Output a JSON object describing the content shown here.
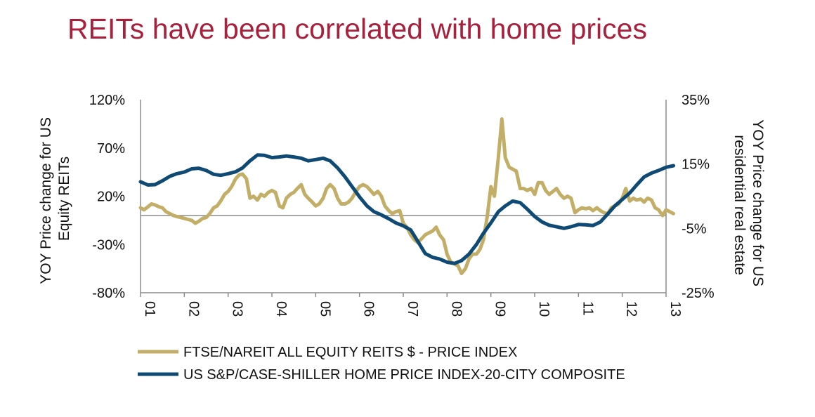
{
  "slide": {
    "title": "REITs have been correlated with home prices"
  },
  "colors": {
    "title": "#A8203C",
    "reits": "#C2AE66",
    "homes": "#0E4A74",
    "axis": "#8C8C8C"
  },
  "chart_data": {
    "type": "line",
    "title": "",
    "xlabel": "",
    "x_ticks": [
      "01",
      "02",
      "03",
      "04",
      "05",
      "06",
      "07",
      "08",
      "09",
      "10",
      "11",
      "12",
      "13"
    ],
    "y_left": {
      "label_lines": [
        "YOY Price change for US",
        "Equity REITs"
      ],
      "ticks": [
        "120%",
        "70%",
        "20%",
        "-30%",
        "-80%"
      ],
      "range": [
        -80,
        120
      ]
    },
    "y_right": {
      "label_lines": [
        "YOY Price change for US",
        "residential real estate"
      ],
      "ticks": [
        "35%",
        "15%",
        "-5%",
        "-25%"
      ],
      "range": [
        -25,
        35
      ]
    },
    "legend_position": "bottom",
    "series": [
      {
        "name": "FTSE/NAREIT ALL EQUITY REITS $ - PRICE INDEX",
        "axis": "left",
        "color": "#C2AE66",
        "points": [
          [
            2001.0,
            8
          ],
          [
            2001.08,
            6
          ],
          [
            2001.17,
            9
          ],
          [
            2001.25,
            12
          ],
          [
            2001.33,
            11
          ],
          [
            2001.42,
            9
          ],
          [
            2001.5,
            8
          ],
          [
            2001.58,
            4
          ],
          [
            2001.67,
            2
          ],
          [
            2001.75,
            0
          ],
          [
            2001.83,
            -1
          ],
          [
            2001.92,
            -2
          ],
          [
            2002.0,
            -3
          ],
          [
            2002.08,
            -4
          ],
          [
            2002.17,
            -5
          ],
          [
            2002.25,
            -8
          ],
          [
            2002.33,
            -6
          ],
          [
            2002.42,
            -3
          ],
          [
            2002.5,
            -2
          ],
          [
            2002.58,
            2
          ],
          [
            2002.67,
            8
          ],
          [
            2002.75,
            10
          ],
          [
            2002.83,
            15
          ],
          [
            2002.92,
            22
          ],
          [
            2003.0,
            25
          ],
          [
            2003.08,
            30
          ],
          [
            2003.17,
            38
          ],
          [
            2003.25,
            42
          ],
          [
            2003.33,
            43
          ],
          [
            2003.42,
            38
          ],
          [
            2003.5,
            18
          ],
          [
            2003.58,
            20
          ],
          [
            2003.67,
            16
          ],
          [
            2003.75,
            22
          ],
          [
            2003.83,
            20
          ],
          [
            2003.92,
            24
          ],
          [
            2004.0,
            26
          ],
          [
            2004.08,
            24
          ],
          [
            2004.17,
            10
          ],
          [
            2004.25,
            8
          ],
          [
            2004.33,
            18
          ],
          [
            2004.42,
            22
          ],
          [
            2004.5,
            24
          ],
          [
            2004.58,
            28
          ],
          [
            2004.67,
            32
          ],
          [
            2004.75,
            22
          ],
          [
            2004.83,
            18
          ],
          [
            2004.92,
            14
          ],
          [
            2005.0,
            10
          ],
          [
            2005.08,
            12
          ],
          [
            2005.17,
            18
          ],
          [
            2005.25,
            28
          ],
          [
            2005.33,
            32
          ],
          [
            2005.42,
            28
          ],
          [
            2005.5,
            18
          ],
          [
            2005.58,
            12
          ],
          [
            2005.67,
            12
          ],
          [
            2005.75,
            14
          ],
          [
            2005.83,
            18
          ],
          [
            2005.92,
            25
          ],
          [
            2006.0,
            30
          ],
          [
            2006.08,
            32
          ],
          [
            2006.17,
            30
          ],
          [
            2006.25,
            26
          ],
          [
            2006.33,
            22
          ],
          [
            2006.42,
            25
          ],
          [
            2006.5,
            20
          ],
          [
            2006.58,
            10
          ],
          [
            2006.67,
            5
          ],
          [
            2006.75,
            2
          ],
          [
            2006.83,
            4
          ],
          [
            2006.92,
            5
          ],
          [
            2007.0,
            -8
          ],
          [
            2007.08,
            -12
          ],
          [
            2007.17,
            -20
          ],
          [
            2007.25,
            -25
          ],
          [
            2007.33,
            -28
          ],
          [
            2007.42,
            -24
          ],
          [
            2007.5,
            -20
          ],
          [
            2007.58,
            -18
          ],
          [
            2007.67,
            -16
          ],
          [
            2007.75,
            -12
          ],
          [
            2007.83,
            -20
          ],
          [
            2007.92,
            -25
          ],
          [
            2008.0,
            -40
          ],
          [
            2008.08,
            -48
          ],
          [
            2008.17,
            -50
          ],
          [
            2008.25,
            -52
          ],
          [
            2008.33,
            -60
          ],
          [
            2008.42,
            -55
          ],
          [
            2008.5,
            -45
          ],
          [
            2008.58,
            -40
          ],
          [
            2008.67,
            -40
          ],
          [
            2008.75,
            -35
          ],
          [
            2008.83,
            -25
          ],
          [
            2008.92,
            0
          ],
          [
            2009.0,
            30
          ],
          [
            2009.08,
            20
          ],
          [
            2009.17,
            60
          ],
          [
            2009.25,
            100
          ],
          [
            2009.33,
            60
          ],
          [
            2009.42,
            50
          ],
          [
            2009.5,
            48
          ],
          [
            2009.58,
            46
          ],
          [
            2009.67,
            28
          ],
          [
            2009.75,
            28
          ],
          [
            2009.83,
            26
          ],
          [
            2009.92,
            28
          ],
          [
            2010.0,
            22
          ],
          [
            2010.08,
            34
          ],
          [
            2010.17,
            34
          ],
          [
            2010.25,
            26
          ],
          [
            2010.33,
            22
          ],
          [
            2010.42,
            25
          ],
          [
            2010.5,
            28
          ],
          [
            2010.58,
            22
          ],
          [
            2010.67,
            18
          ],
          [
            2010.75,
            20
          ],
          [
            2010.83,
            18
          ],
          [
            2010.92,
            3
          ],
          [
            2011.0,
            6
          ],
          [
            2011.08,
            8
          ],
          [
            2011.17,
            7
          ],
          [
            2011.25,
            8
          ],
          [
            2011.33,
            5
          ],
          [
            2011.42,
            8
          ],
          [
            2011.5,
            5
          ],
          [
            2011.58,
            3
          ],
          [
            2011.67,
            2
          ],
          [
            2011.75,
            8
          ],
          [
            2011.83,
            10
          ],
          [
            2011.92,
            12
          ],
          [
            2012.0,
            18
          ],
          [
            2012.08,
            28
          ],
          [
            2012.17,
            15
          ],
          [
            2012.25,
            18
          ],
          [
            2012.33,
            16
          ],
          [
            2012.42,
            17
          ],
          [
            2012.5,
            14
          ],
          [
            2012.58,
            18
          ],
          [
            2012.67,
            16
          ],
          [
            2012.75,
            8
          ],
          [
            2012.83,
            6
          ],
          [
            2012.92,
            0
          ],
          [
            2013.0,
            6
          ],
          [
            2013.08,
            4
          ],
          [
            2013.17,
            2
          ]
        ]
      },
      {
        "name": "US S&P/CASE-SHILLER HOME PRICE INDEX-20-CITY COMPOSITE",
        "axis": "right",
        "color": "#0E4A74",
        "points": [
          [
            2001.0,
            9.5
          ],
          [
            2001.17,
            8.5
          ],
          [
            2001.33,
            8.6
          ],
          [
            2001.5,
            9.8
          ],
          [
            2001.67,
            11.2
          ],
          [
            2001.83,
            12.0
          ],
          [
            2002.0,
            12.5
          ],
          [
            2002.17,
            13.5
          ],
          [
            2002.33,
            13.7
          ],
          [
            2002.5,
            13.0
          ],
          [
            2002.67,
            11.8
          ],
          [
            2002.83,
            11.5
          ],
          [
            2003.0,
            12.0
          ],
          [
            2003.17,
            12.6
          ],
          [
            2003.33,
            13.8
          ],
          [
            2003.5,
            16.0
          ],
          [
            2003.67,
            17.8
          ],
          [
            2003.83,
            17.7
          ],
          [
            2004.0,
            17.0
          ],
          [
            2004.17,
            17.2
          ],
          [
            2004.33,
            17.5
          ],
          [
            2004.5,
            17.2
          ],
          [
            2004.67,
            16.8
          ],
          [
            2004.83,
            16.0
          ],
          [
            2005.0,
            16.4
          ],
          [
            2005.17,
            16.8
          ],
          [
            2005.33,
            16.0
          ],
          [
            2005.5,
            13.8
          ],
          [
            2005.67,
            11.0
          ],
          [
            2005.83,
            8.0
          ],
          [
            2006.0,
            4.8
          ],
          [
            2006.17,
            2.0
          ],
          [
            2006.33,
            0.2
          ],
          [
            2006.5,
            -0.8
          ],
          [
            2006.67,
            -2.0
          ],
          [
            2006.83,
            -3.3
          ],
          [
            2007.0,
            -4.2
          ],
          [
            2007.17,
            -5.5
          ],
          [
            2007.33,
            -9.0
          ],
          [
            2007.5,
            -12.8
          ],
          [
            2007.67,
            -14.0
          ],
          [
            2007.83,
            -14.5
          ],
          [
            2008.0,
            -15.5
          ],
          [
            2008.17,
            -15.9
          ],
          [
            2008.33,
            -15.0
          ],
          [
            2008.5,
            -13.0
          ],
          [
            2008.67,
            -10.0
          ],
          [
            2008.83,
            -6.5
          ],
          [
            2009.0,
            -3.3
          ],
          [
            2009.17,
            0.2
          ],
          [
            2009.33,
            2.0
          ],
          [
            2009.5,
            3.5
          ],
          [
            2009.67,
            3.0
          ],
          [
            2009.83,
            1.0
          ],
          [
            2010.0,
            -1.3
          ],
          [
            2010.17,
            -3.0
          ],
          [
            2010.33,
            -4.0
          ],
          [
            2010.5,
            -4.5
          ],
          [
            2010.67,
            -5.0
          ],
          [
            2010.83,
            -4.5
          ],
          [
            2011.0,
            -3.8
          ],
          [
            2011.17,
            -3.9
          ],
          [
            2011.33,
            -4.1
          ],
          [
            2011.5,
            -3.0
          ],
          [
            2011.67,
            -0.5
          ],
          [
            2011.83,
            2.0
          ],
          [
            2012.0,
            4.0
          ],
          [
            2012.17,
            6.0
          ],
          [
            2012.33,
            8.5
          ],
          [
            2012.5,
            11.0
          ],
          [
            2012.67,
            12.2
          ],
          [
            2012.83,
            13.0
          ],
          [
            2013.0,
            14.0
          ],
          [
            2013.17,
            14.5
          ]
        ]
      }
    ]
  }
}
